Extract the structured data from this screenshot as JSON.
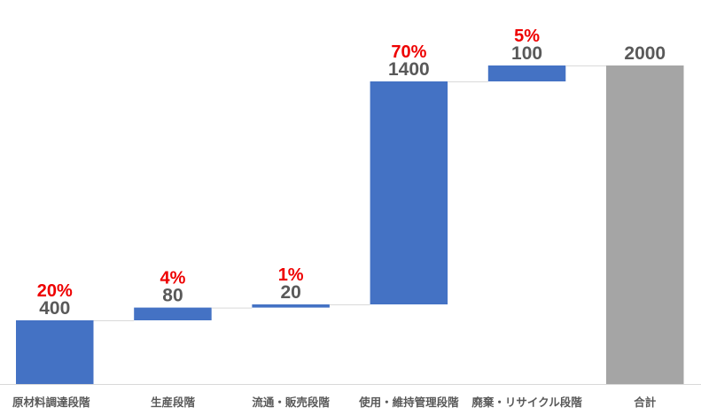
{
  "chart_data": {
    "type": "waterfall",
    "categories": [
      "原材料調達段階",
      "生産段階",
      "流通・販売段階",
      "使用・維持管理段階",
      "廃棄・リサイクル段階",
      "合計"
    ],
    "values": [
      400,
      80,
      20,
      1400,
      100,
      2000
    ],
    "percent_labels": [
      "20%",
      "4%",
      "1%",
      "70%",
      "5%",
      ""
    ],
    "total_index": 5,
    "ylim": [
      0,
      2000
    ],
    "grid": false,
    "legend": "none",
    "colors": {
      "increase": "#4472c4",
      "total": "#a5a5a5",
      "value_label": "#595959",
      "percent_label": "#ee0000",
      "connector": "#d9d9d9"
    }
  }
}
